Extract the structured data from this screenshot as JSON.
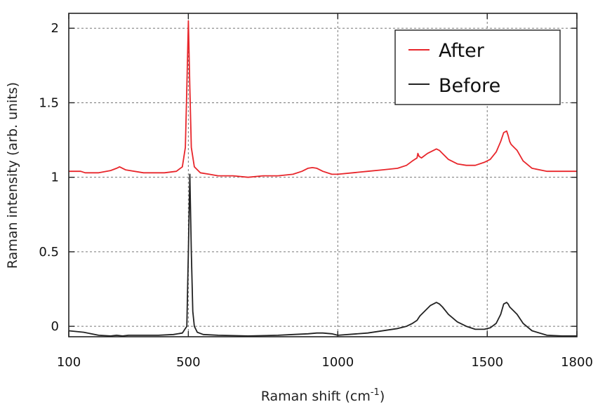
{
  "chart_data": {
    "type": "line",
    "title": "",
    "xlabel": "Raman shift (cm",
    "xlabel_sup": "-1",
    "xlabel_close": ")",
    "ylabel": "Raman intensity (arb. units)",
    "xlim": [
      100,
      1800
    ],
    "ylim": [
      -0.07,
      2.1
    ],
    "xticks": [
      100,
      500,
      1000,
      1500,
      1800
    ],
    "yticks": [
      0,
      0.5,
      1,
      1.5,
      2
    ],
    "ytick_labels": [
      "0",
      "0.5",
      "1",
      "1.5",
      "2"
    ],
    "xtick_labels": [
      "100",
      "500",
      "1000",
      "1500",
      "1800"
    ],
    "grid": true,
    "legend_position": "top-right",
    "series": [
      {
        "name": "After",
        "color": "#e8262b",
        "x": [
          100,
          140,
          155,
          200,
          240,
          260,
          270,
          290,
          350,
          420,
          460,
          480,
          490,
          495,
          500,
          505,
          510,
          520,
          540,
          570,
          600,
          650,
          700,
          750,
          800,
          850,
          880,
          900,
          915,
          930,
          950,
          980,
          1000,
          1050,
          1100,
          1150,
          1200,
          1230,
          1250,
          1265,
          1268,
          1272,
          1280,
          1300,
          1320,
          1330,
          1340,
          1350,
          1370,
          1400,
          1430,
          1460,
          1490,
          1510,
          1530,
          1545,
          1555,
          1565,
          1570,
          1575,
          1580,
          1590,
          1600,
          1620,
          1650,
          1700,
          1750,
          1800
        ],
        "y": [
          1.04,
          1.04,
          1.03,
          1.03,
          1.045,
          1.06,
          1.07,
          1.05,
          1.03,
          1.03,
          1.04,
          1.07,
          1.2,
          1.6,
          2.05,
          1.6,
          1.2,
          1.07,
          1.03,
          1.02,
          1.01,
          1.01,
          1.0,
          1.01,
          1.01,
          1.02,
          1.04,
          1.06,
          1.065,
          1.06,
          1.04,
          1.02,
          1.02,
          1.03,
          1.04,
          1.05,
          1.06,
          1.08,
          1.11,
          1.13,
          1.16,
          1.14,
          1.13,
          1.16,
          1.18,
          1.19,
          1.18,
          1.16,
          1.12,
          1.09,
          1.08,
          1.08,
          1.1,
          1.12,
          1.17,
          1.24,
          1.3,
          1.31,
          1.28,
          1.24,
          1.22,
          1.2,
          1.18,
          1.11,
          1.06,
          1.04,
          1.04,
          1.04
        ]
      },
      {
        "name": "Before",
        "color": "#222222",
        "x": [
          100,
          150,
          200,
          240,
          260,
          280,
          300,
          350,
          400,
          450,
          480,
          495,
          500,
          505,
          510,
          515,
          520,
          530,
          550,
          600,
          700,
          800,
          850,
          900,
          930,
          950,
          980,
          1000,
          1100,
          1200,
          1230,
          1250,
          1265,
          1270,
          1275,
          1290,
          1310,
          1330,
          1340,
          1350,
          1370,
          1400,
          1430,
          1460,
          1490,
          1510,
          1530,
          1545,
          1555,
          1565,
          1570,
          1575,
          1580,
          1590,
          1600,
          1620,
          1650,
          1700,
          1750,
          1800
        ],
        "y": [
          -0.03,
          -0.04,
          -0.06,
          -0.065,
          -0.06,
          -0.065,
          -0.06,
          -0.06,
          -0.06,
          -0.055,
          -0.045,
          0.0,
          0.5,
          1.02,
          0.5,
          0.1,
          0.0,
          -0.04,
          -0.055,
          -0.06,
          -0.065,
          -0.06,
          -0.055,
          -0.05,
          -0.045,
          -0.045,
          -0.05,
          -0.06,
          -0.045,
          -0.015,
          0.0,
          0.02,
          0.04,
          0.055,
          0.07,
          0.1,
          0.14,
          0.16,
          0.15,
          0.13,
          0.08,
          0.03,
          0.0,
          -0.02,
          -0.02,
          -0.01,
          0.02,
          0.08,
          0.15,
          0.16,
          0.15,
          0.13,
          0.12,
          0.1,
          0.08,
          0.02,
          -0.03,
          -0.06,
          -0.065,
          -0.065
        ]
      }
    ]
  }
}
